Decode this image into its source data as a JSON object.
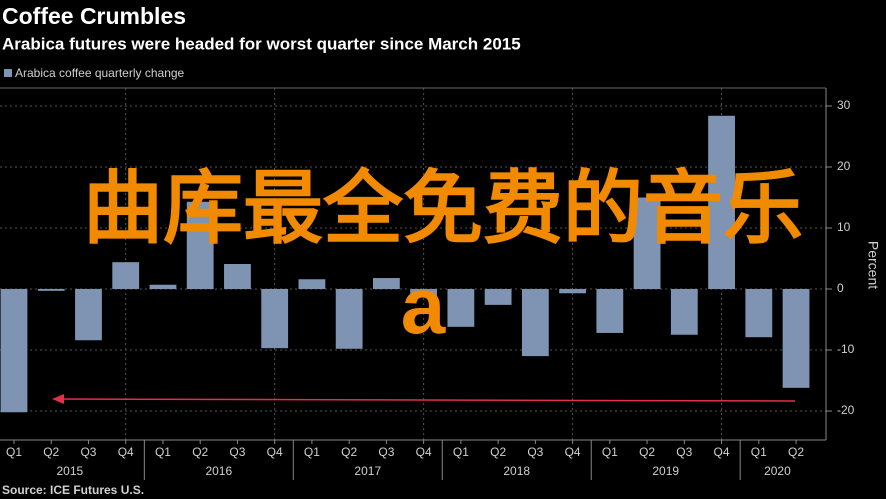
{
  "chart_data": {
    "type": "bar",
    "title": "Coffee Crumbles",
    "subtitle": "Arabica futures were headed for worst quarter since March 2015",
    "categories": [
      "Q1",
      "Q2",
      "Q3",
      "Q4",
      "Q1",
      "Q2",
      "Q3",
      "Q4",
      "Q1",
      "Q2",
      "Q3",
      "Q4",
      "Q1",
      "Q2",
      "Q3",
      "Q4",
      "Q1",
      "Q2",
      "Q3",
      "Q4",
      "Q1",
      "Q2"
    ],
    "years": [
      "2015",
      "2016",
      "2017",
      "2018",
      "2019",
      "2020"
    ],
    "series": [
      {
        "name": "Arabica coffee quarterly change",
        "color": "#7f93b3",
        "values": [
          -20.2,
          -0.3,
          -8.4,
          4.4,
          0.7,
          14.3,
          4.1,
          -9.7,
          1.6,
          -9.8,
          1.8,
          -1.3,
          -6.2,
          -2.6,
          -11,
          -0.7,
          -7.2,
          15,
          -7.5,
          28.4,
          -7.9,
          -16.2
        ]
      }
    ],
    "y_label": "Percent",
    "ylim": [
      -24.75,
      32.95
    ],
    "yticks": [
      -20,
      -10,
      0,
      10,
      20,
      30
    ],
    "grid": true,
    "source": "Source: ICE Futures U.S.",
    "annotations": [
      "曲库最全免费的音乐",
      "a"
    ]
  }
}
